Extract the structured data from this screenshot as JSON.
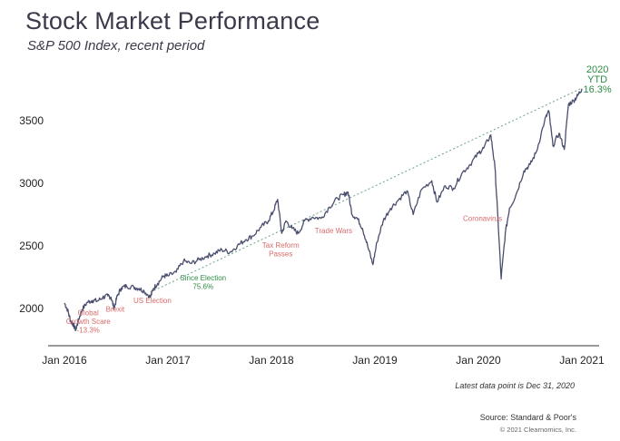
{
  "chart_data": {
    "type": "line",
    "title": "Stock Market Performance",
    "subtitle": "S&P 500 Index, recent period",
    "xlabel": "",
    "ylabel": "",
    "x_ticks": [
      "Jan 2016",
      "Jan 2017",
      "Jan 2018",
      "Jan 2019",
      "Jan 2020",
      "Jan 2021"
    ],
    "y_ticks": [
      2000,
      2500,
      3000,
      3500
    ],
    "ylim": [
      1800,
      3850
    ],
    "xlim": [
      2016.0,
      2021.1
    ],
    "grid": false,
    "series": [
      {
        "name": "",
        "color": "#4a4e6e",
        "points": [
          [
            2016.0,
            2044
          ],
          [
            2016.03,
            1990
          ],
          [
            2016.06,
            1900
          ],
          [
            2016.08,
            1880
          ],
          [
            2016.11,
            1829
          ],
          [
            2016.14,
            1920
          ],
          [
            2016.17,
            1990
          ],
          [
            2016.22,
            2050
          ],
          [
            2016.27,
            2065
          ],
          [
            2016.32,
            2060
          ],
          [
            2016.37,
            2090
          ],
          [
            2016.42,
            2100
          ],
          [
            2016.45,
            2090
          ],
          [
            2016.48,
            2000
          ],
          [
            2016.51,
            2100
          ],
          [
            2016.55,
            2165
          ],
          [
            2016.6,
            2180
          ],
          [
            2016.67,
            2170
          ],
          [
            2016.72,
            2160
          ],
          [
            2016.77,
            2140
          ],
          [
            2016.83,
            2090
          ],
          [
            2016.86,
            2160
          ],
          [
            2016.9,
            2200
          ],
          [
            2016.96,
            2260
          ],
          [
            2017.0,
            2260
          ],
          [
            2017.08,
            2290
          ],
          [
            2017.15,
            2380
          ],
          [
            2017.22,
            2360
          ],
          [
            2017.3,
            2390
          ],
          [
            2017.38,
            2420
          ],
          [
            2017.45,
            2440
          ],
          [
            2017.52,
            2470
          ],
          [
            2017.6,
            2450
          ],
          [
            2017.67,
            2500
          ],
          [
            2017.75,
            2550
          ],
          [
            2017.82,
            2580
          ],
          [
            2017.9,
            2650
          ],
          [
            2017.97,
            2700
          ],
          [
            2018.02,
            2780
          ],
          [
            2018.06,
            2872
          ],
          [
            2018.1,
            2600
          ],
          [
            2018.14,
            2700
          ],
          [
            2018.2,
            2640
          ],
          [
            2018.26,
            2600
          ],
          [
            2018.32,
            2700
          ],
          [
            2018.4,
            2730
          ],
          [
            2018.48,
            2720
          ],
          [
            2018.56,
            2810
          ],
          [
            2018.64,
            2880
          ],
          [
            2018.7,
            2910
          ],
          [
            2018.74,
            2930
          ],
          [
            2018.78,
            2750
          ],
          [
            2018.83,
            2720
          ],
          [
            2018.88,
            2640
          ],
          [
            2018.93,
            2500
          ],
          [
            2018.98,
            2351
          ],
          [
            2019.02,
            2530
          ],
          [
            2019.08,
            2700
          ],
          [
            2019.15,
            2800
          ],
          [
            2019.23,
            2870
          ],
          [
            2019.31,
            2940
          ],
          [
            2019.37,
            2750
          ],
          [
            2019.45,
            2950
          ],
          [
            2019.55,
            3020
          ],
          [
            2019.6,
            2850
          ],
          [
            2019.68,
            2980
          ],
          [
            2019.76,
            2960
          ],
          [
            2019.84,
            3080
          ],
          [
            2019.92,
            3150
          ],
          [
            2020.0,
            3240
          ],
          [
            2020.05,
            3280
          ],
          [
            2020.12,
            3386
          ],
          [
            2020.16,
            3130
          ],
          [
            2020.19,
            2700
          ],
          [
            2020.22,
            2237
          ],
          [
            2020.26,
            2600
          ],
          [
            2020.3,
            2800
          ],
          [
            2020.36,
            2900
          ],
          [
            2020.44,
            3100
          ],
          [
            2020.5,
            3150
          ],
          [
            2020.56,
            3250
          ],
          [
            2020.64,
            3500
          ],
          [
            2020.68,
            3580
          ],
          [
            2020.72,
            3300
          ],
          [
            2020.78,
            3400
          ],
          [
            2020.83,
            3270
          ],
          [
            2020.87,
            3630
          ],
          [
            2020.92,
            3660
          ],
          [
            2020.96,
            3700
          ],
          [
            2021.0,
            3756
          ]
        ]
      }
    ],
    "trendline": {
      "style": "dotted",
      "color": "#6aa38a",
      "from": [
        2016.83,
        2130
      ],
      "to": [
        2021.0,
        3760
      ]
    },
    "annotations": [
      {
        "lines": [
          "Global",
          "Growth Scare",
          "-13.3%"
        ],
        "x": 2016.23,
        "y": 1945,
        "color": "#d96a6a"
      },
      {
        "lines": [
          "Brexit"
        ],
        "x": 2016.49,
        "y": 1975,
        "color": "#d96a6a"
      },
      {
        "lines": [
          "US Election"
        ],
        "x": 2016.85,
        "y": 2045,
        "color": "#d96a6a"
      },
      {
        "lines": [
          "Since Election",
          "75.6%"
        ],
        "x": 2017.34,
        "y": 2225,
        "color": "#2e8a45"
      },
      {
        "lines": [
          "Tax Reform",
          "Passes"
        ],
        "x": 2018.09,
        "y": 2485,
        "color": "#d96a6a"
      },
      {
        "lines": [
          "Trade Wars"
        ],
        "x": 2018.6,
        "y": 2600,
        "color": "#d96a6a"
      },
      {
        "lines": [
          "Coronavirus"
        ],
        "x": 2020.04,
        "y": 2700,
        "color": "#d96a6a"
      },
      {
        "lines": [
          "2020",
          "YTD",
          "16.3%"
        ],
        "x": 2021.15,
        "y": 3885,
        "color": "#2e8a45"
      }
    ]
  },
  "notes": {
    "latest": "Latest data point is Dec 31, 2020",
    "source": "Source: Standard & Poor's",
    "copyright": "© 2021 Clearnomics, Inc."
  }
}
